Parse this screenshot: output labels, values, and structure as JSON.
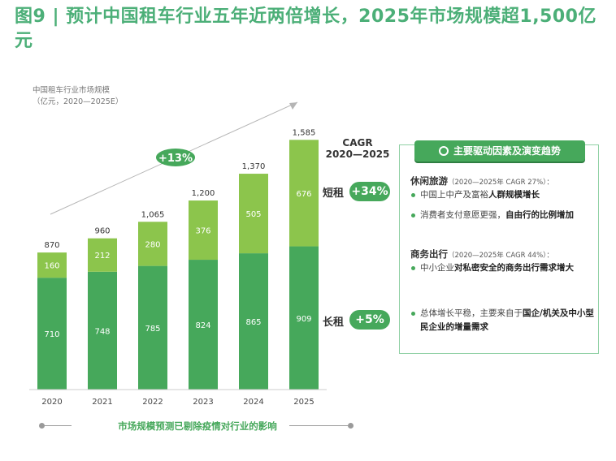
{
  "figure": {
    "title": "图9 | 预计中国租车行业五年近两倍增长，2025年市场规模超1,500亿元"
  },
  "chart_data": {
    "type": "bar",
    "stacked": true,
    "title": "中国租车行业市场规模",
    "unit": "（亿元，2020—2025E）",
    "categories": [
      "2020",
      "2021",
      "2022",
      "2023",
      "2024",
      "2025"
    ],
    "series": [
      {
        "name": "长租",
        "values": [
          710,
          748,
          785,
          824,
          865,
          909
        ],
        "color": "#46a85b"
      },
      {
        "name": "短租",
        "values": [
          160,
          212,
          280,
          376,
          505,
          676
        ],
        "color": "#8cc54c"
      }
    ],
    "totals": [
      870,
      960,
      1065,
      1200,
      1370,
      1585
    ],
    "total_labels": [
      "870",
      "960",
      "1,065",
      "1,200",
      "1,370",
      "1,585"
    ],
    "ylim": [
      0,
      1700
    ],
    "overall_growth_label": "+13%",
    "grid": false,
    "legend": "none"
  },
  "cagr": {
    "header": "CAGR",
    "period": "2020—2025",
    "short_label": "短租",
    "short_value": "+34%",
    "long_label": "长租",
    "long_value": "+5%"
  },
  "drivers": {
    "header": "主要驱动因素及演变趋势",
    "leisure_title": "休闲旅游",
    "leisure_sub": "（2020—2025年 CAGR 27%）：",
    "leisure_b1_plain": "中国上中产及富裕",
    "leisure_b1_bold": "人群规模增长",
    "leisure_b2_plain": "消费者支付意愿更强，",
    "leisure_b2_bold": "自由行的比例增加",
    "business_title": "商务出行",
    "business_sub": "（2020—2025年 CAGR 44%）：",
    "business_b1_plain": "中小企业",
    "business_b1_bold": "对私密安全的商务出行需求增大",
    "long_b1_plain": "总体增长平稳，主要来自于",
    "long_b1_bold": "国企/机关及中小型民企业的增量需求"
  },
  "footnote": "市场规模预测已剔除疫情对行业的影响",
  "colors": {
    "accent": "#46a85b",
    "light": "#8cc54c",
    "title": "#4caf78"
  }
}
